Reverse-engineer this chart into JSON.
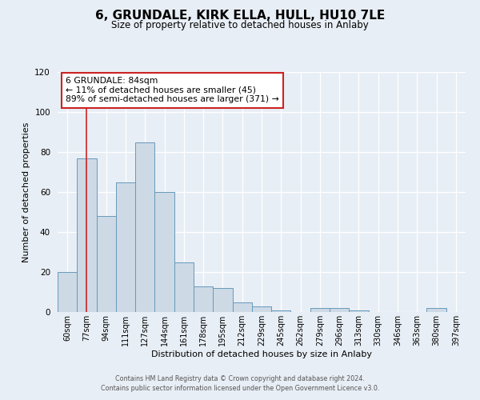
{
  "title": "6, GRUNDALE, KIRK ELLA, HULL, HU10 7LE",
  "subtitle": "Size of property relative to detached houses in Anlaby",
  "xlabel": "Distribution of detached houses by size in Anlaby",
  "ylabel": "Number of detached properties",
  "bar_color": "#cdd9e5",
  "bar_edge_color": "#6699bb",
  "background_color": "#e8eef5",
  "categories": [
    "60sqm",
    "77sqm",
    "94sqm",
    "111sqm",
    "127sqm",
    "144sqm",
    "161sqm",
    "178sqm",
    "195sqm",
    "212sqm",
    "229sqm",
    "245sqm",
    "262sqm",
    "279sqm",
    "296sqm",
    "313sqm",
    "330sqm",
    "346sqm",
    "363sqm",
    "380sqm",
    "397sqm"
  ],
  "values": [
    20,
    77,
    48,
    65,
    85,
    60,
    25,
    13,
    12,
    5,
    3,
    1,
    0,
    2,
    2,
    1,
    0,
    0,
    0,
    2,
    0
  ],
  "ylim": [
    0,
    120
  ],
  "yticks": [
    0,
    20,
    40,
    60,
    80,
    100,
    120
  ],
  "vline_x": 1.0,
  "vline_color": "#cc2222",
  "annotation_title": "6 GRUNDALE: 84sqm",
  "annotation_line1": "← 11% of detached houses are smaller (45)",
  "annotation_line2": "89% of semi-detached houses are larger (371) →",
  "annotation_box_facecolor": "#ffffff",
  "annotation_box_edgecolor": "#cc2222",
  "footer_line1": "Contains HM Land Registry data © Crown copyright and database right 2024.",
  "footer_line2": "Contains public sector information licensed under the Open Government Licence v3.0."
}
